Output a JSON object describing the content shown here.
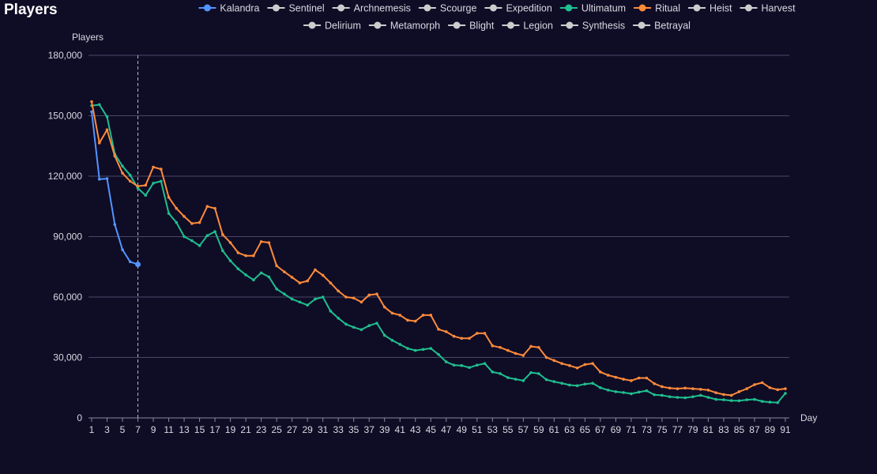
{
  "title": "Players",
  "colors": {
    "background": "#0f0c26",
    "grid": "#4a4766",
    "axis_text": "#d9d9e0",
    "inactive": "#cccccc"
  },
  "chart_data": {
    "type": "line",
    "title": "Players",
    "ylabel": "Players",
    "xlabel": "Day",
    "ylim": [
      0,
      180000
    ],
    "yticks": [
      "0",
      "30,000",
      "60,000",
      "90,000",
      "120,000",
      "150,000",
      "180,000"
    ],
    "xlim": [
      1,
      91
    ],
    "xticks": [
      "1",
      "3",
      "5",
      "7",
      "9",
      "11",
      "13",
      "15",
      "17",
      "19",
      "21",
      "23",
      "25",
      "27",
      "29",
      "31",
      "33",
      "35",
      "37",
      "39",
      "41",
      "43",
      "45",
      "47",
      "49",
      "51",
      "53",
      "55",
      "57",
      "59",
      "61",
      "63",
      "65",
      "67",
      "69",
      "71",
      "73",
      "75",
      "77",
      "79",
      "81",
      "83",
      "85",
      "87",
      "89",
      "91"
    ],
    "marker_line_x": 7,
    "legend_position": "top",
    "series": [
      {
        "name": "Kalandra",
        "color": "#5294ff",
        "active": true,
        "values": [
          152000,
          118500,
          118800,
          96000,
          83500,
          77500,
          76200
        ]
      },
      {
        "name": "Sentinel",
        "active": false
      },
      {
        "name": "Archnemesis",
        "active": false
      },
      {
        "name": "Scourge",
        "active": false
      },
      {
        "name": "Expedition",
        "active": false
      },
      {
        "name": "Ultimatum",
        "color": "#1fbf8f",
        "active": true,
        "values": [
          155000,
          155500,
          149500,
          131000,
          125000,
          120500,
          114000,
          110500,
          116500,
          117500,
          101500,
          97000,
          90000,
          88000,
          85500,
          90500,
          92500,
          83000,
          78000,
          74000,
          71000,
          68500,
          72000,
          70000,
          64000,
          61500,
          59000,
          57500,
          56000,
          59000,
          60000,
          53000,
          49500,
          46500,
          45000,
          43800,
          45800,
          47000,
          41000,
          38500,
          36500,
          34500,
          33500,
          34000,
          34500,
          31500,
          27800,
          26200,
          26000,
          25000,
          26200,
          27000,
          22800,
          22000,
          20000,
          19200,
          18500,
          22500,
          22000,
          19000,
          18000,
          17200,
          16300,
          16000,
          16800,
          17200,
          15000,
          13800,
          13000,
          12600,
          12000,
          12800,
          13500,
          11500,
          11200,
          10500,
          10200,
          10000,
          10500,
          11200,
          10200,
          9200,
          9000,
          8600,
          8500,
          9000,
          9200,
          8200,
          7800,
          7600,
          12200
        ]
      },
      {
        "name": "Ritual",
        "color": "#ff8b3a",
        "active": true,
        "values": [
          157000,
          136500,
          143000,
          130000,
          121500,
          117500,
          115000,
          115500,
          124500,
          123500,
          109500,
          104000,
          100000,
          96500,
          97000,
          105000,
          104000,
          91000,
          87000,
          82000,
          80500,
          80500,
          87500,
          87000,
          75500,
          72500,
          69800,
          67000,
          68000,
          73500,
          70800,
          67000,
          63000,
          60000,
          59500,
          57500,
          61000,
          61500,
          55000,
          52000,
          51000,
          48500,
          48000,
          51000,
          51000,
          44000,
          42800,
          40500,
          39500,
          39500,
          42000,
          42000,
          35800,
          35000,
          33500,
          32000,
          31000,
          35500,
          35000,
          30000,
          28500,
          27000,
          26000,
          24800,
          26500,
          27000,
          22800,
          21200,
          20200,
          19200,
          18500,
          19800,
          19800,
          17000,
          15500,
          14800,
          14500,
          14800,
          14500,
          14200,
          13800,
          12500,
          11600,
          11200,
          13000,
          14500,
          16500,
          17500,
          15000,
          14000,
          14500
        ]
      },
      {
        "name": "Heist",
        "active": false
      },
      {
        "name": "Harvest",
        "active": false
      },
      {
        "name": "Delirium",
        "active": false
      },
      {
        "name": "Metamorph",
        "active": false
      },
      {
        "name": "Blight",
        "active": false
      },
      {
        "name": "Legion",
        "active": false
      },
      {
        "name": "Synthesis",
        "active": false
      },
      {
        "name": "Betrayal",
        "active": false
      }
    ]
  }
}
